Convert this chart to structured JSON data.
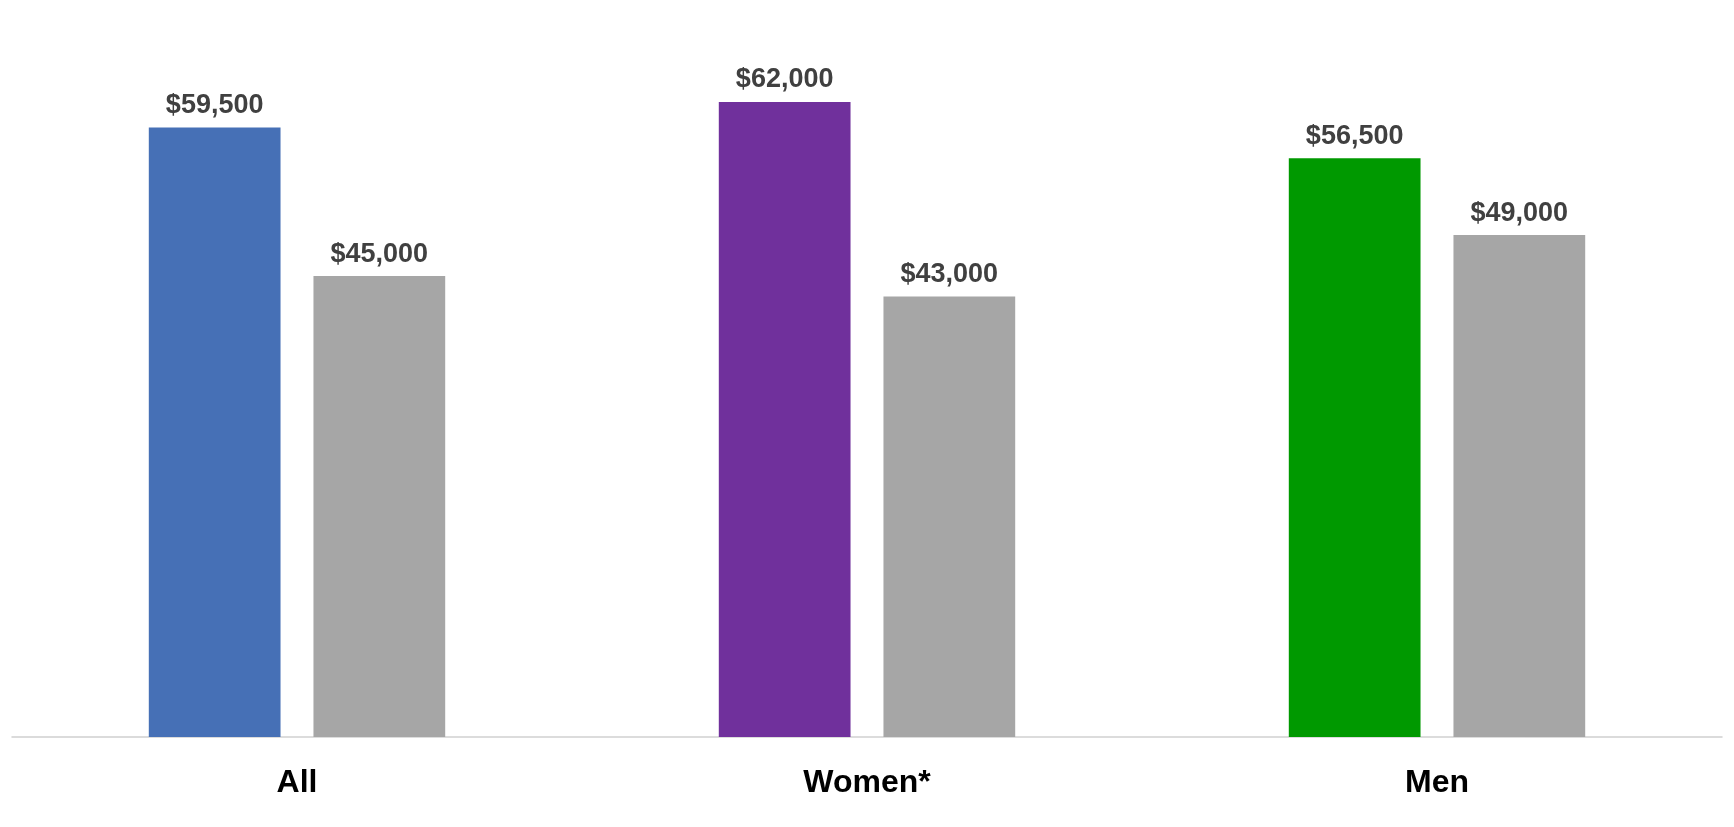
{
  "chart_data": {
    "type": "bar",
    "categories": [
      "All",
      "Women*",
      "Men"
    ],
    "series": [
      {
        "colors": [
          "#4670b6",
          "#70309c",
          "#009900"
        ],
        "values": [
          59500,
          62000,
          56500
        ],
        "value_labels": [
          "$59,500",
          "$62,000",
          "$56,500"
        ]
      },
      {
        "color": "#a6a6a6",
        "values": [
          45000,
          43000,
          49000
        ],
        "value_labels": [
          "$45,000",
          "$43,000",
          "$49,000"
        ]
      }
    ]
  }
}
